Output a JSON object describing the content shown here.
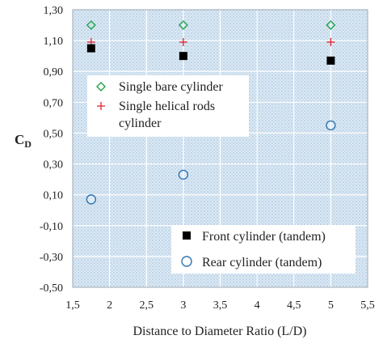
{
  "chart_data": {
    "type": "scatter",
    "title": "",
    "xlabel": "Distance to Diameter Ratio (L/D)",
    "ylabel": "C",
    "ylabel_sub": "D",
    "xlim": [
      1.5,
      5.5
    ],
    "ylim": [
      -0.5,
      1.3
    ],
    "x_ticks": [
      "1,5",
      "2",
      "2,5",
      "3",
      "3,5",
      "4",
      "4,5",
      "5",
      "5,5"
    ],
    "x_tick_values": [
      1.5,
      2,
      2.5,
      3,
      3.5,
      4,
      4.5,
      5,
      5.5
    ],
    "y_ticks": [
      "-0,50",
      "-0,30",
      "-0,10",
      "0,10",
      "0,30",
      "0,50",
      "0,70",
      "0,90",
      "1,10",
      "1,30"
    ],
    "y_tick_values": [
      -0.5,
      -0.3,
      -0.1,
      0.1,
      0.3,
      0.5,
      0.7,
      0.9,
      1.1,
      1.3
    ],
    "grid": true,
    "background": "dotted light blue",
    "legends": [
      {
        "placement": "upper-middle",
        "entries": [
          "Single bare cylinder",
          "Single helical rods cylinder"
        ]
      },
      {
        "placement": "lower-right",
        "entries": [
          "Front cylinder (tandem)",
          "Rear cylinder (tandem)"
        ]
      }
    ],
    "series": [
      {
        "name": "Single bare cylinder",
        "marker": "diamond-open",
        "color": "#22a34a",
        "x": [
          1.75,
          3,
          5
        ],
        "y": [
          1.2,
          1.2,
          1.2
        ]
      },
      {
        "name": "Single helical rods cylinder",
        "marker": "plus",
        "color": "#e0202a",
        "x": [
          1.75,
          3,
          5
        ],
        "y": [
          1.09,
          1.09,
          1.09
        ]
      },
      {
        "name": "Front cylinder (tandem)",
        "marker": "square-filled",
        "color": "#000000",
        "x": [
          1.75,
          3,
          5
        ],
        "y": [
          1.05,
          1.0,
          0.97
        ]
      },
      {
        "name": "Rear cylinder (tandem)",
        "marker": "circle-open",
        "color": "#2e75b6",
        "x": [
          1.75,
          3,
          5
        ],
        "y": [
          0.07,
          0.23,
          0.55
        ]
      }
    ]
  }
}
